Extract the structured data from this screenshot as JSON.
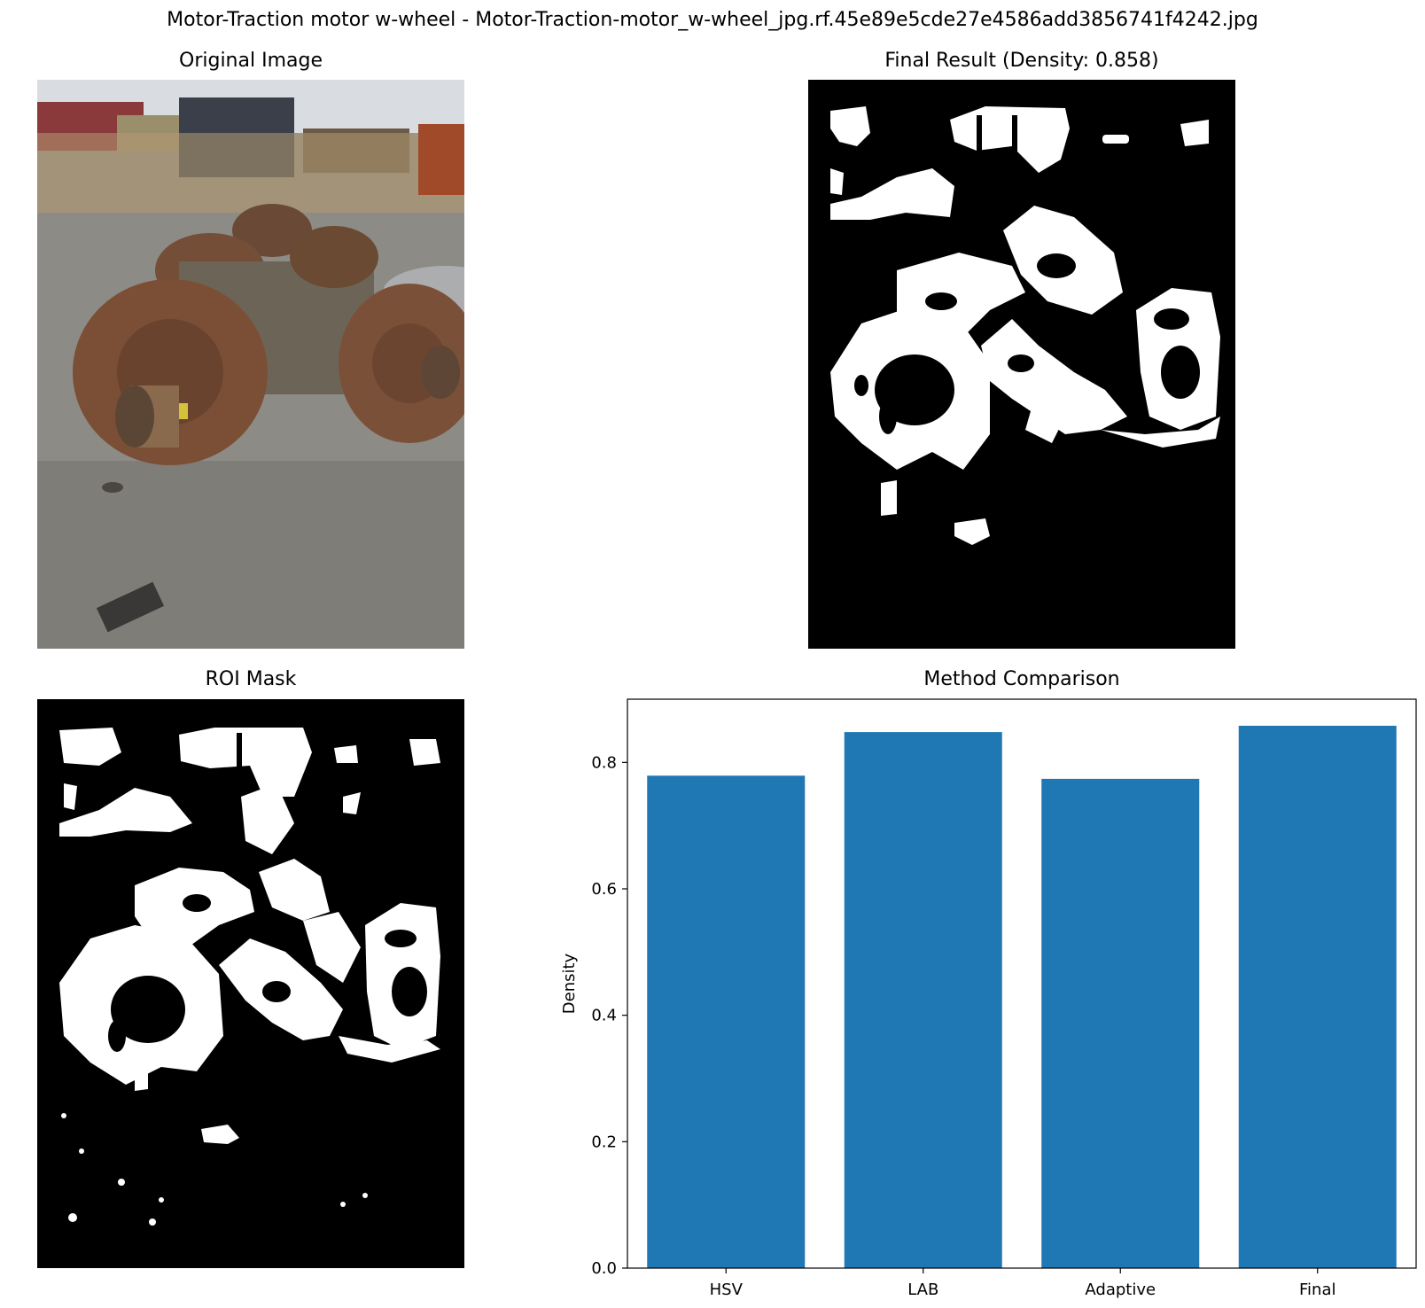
{
  "figure": {
    "suptitle": "Motor-Traction motor w-wheel - Motor-Traction-motor_w-wheel_jpg.rf.45e89e5cde27e4586add3856741f4242.jpg"
  },
  "panels": {
    "original": {
      "title": "Original Image"
    },
    "final": {
      "title": "Final Result (Density: 0.858)"
    },
    "roi": {
      "title": "ROI Mask"
    },
    "comparison": {
      "title": "Method Comparison"
    }
  },
  "chart_data": {
    "type": "bar",
    "title": "Method Comparison",
    "xlabel": "",
    "ylabel": "Density",
    "categories": [
      "HSV",
      "LAB",
      "Adaptive",
      "Final"
    ],
    "values": [
      0.779,
      0.848,
      0.774,
      0.858
    ],
    "ylim": [
      0,
      0.9
    ],
    "yticks": [
      "0.0",
      "0.2",
      "0.4",
      "0.6",
      "0.8"
    ],
    "bar_color": "#1f77b4",
    "grid": false
  }
}
